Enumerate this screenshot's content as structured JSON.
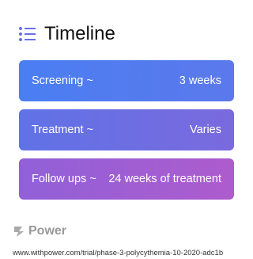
{
  "header": {
    "title": "Timeline"
  },
  "timeline": {
    "items": [
      {
        "label": "Screening ~",
        "value": "3 weeks"
      },
      {
        "label": "Treatment ~",
        "value": "Varies"
      },
      {
        "label": "Follow ups ~",
        "value": "24 weeks of treatment"
      }
    ]
  },
  "footer": {
    "brand": "Power",
    "url": "www.withpower.com/trial/phase-3-polycythemia-10-2020-adc1b"
  }
}
